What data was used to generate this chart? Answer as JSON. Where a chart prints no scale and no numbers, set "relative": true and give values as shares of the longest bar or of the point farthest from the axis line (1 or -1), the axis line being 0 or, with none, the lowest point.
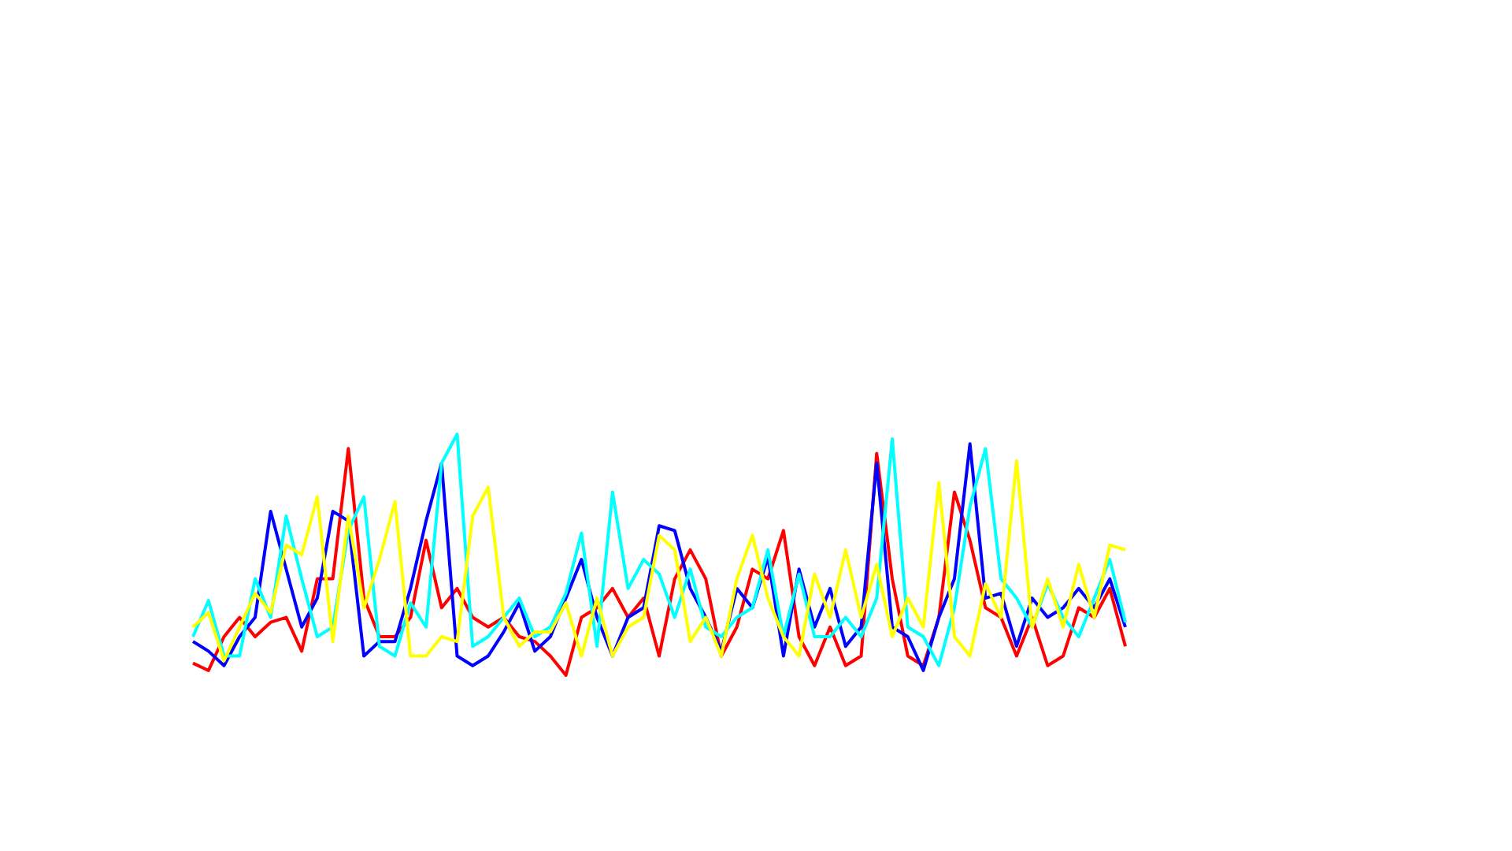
{
  "chart_data": {
    "type": "line",
    "relative": true,
    "categories": [
      null,
      null,
      null,
      null,
      null,
      null,
      null,
      null,
      null,
      null,
      null,
      null,
      null,
      null,
      null,
      null,
      null,
      null,
      null,
      null,
      null,
      null,
      null,
      null,
      null,
      null,
      null,
      null,
      null,
      null,
      null,
      null,
      null,
      null,
      null,
      null,
      null,
      null,
      null,
      null,
      null,
      null,
      null,
      null,
      null,
      null,
      null,
      null,
      null,
      null,
      null,
      null,
      null,
      null,
      null,
      null,
      null,
      null,
      null,
      null,
      null
    ],
    "series": [
      {
        "color": "#ff0000",
        "values": [
          0.05,
          0.02,
          0.16,
          0.24,
          0.16,
          0.22,
          0.24,
          0.1,
          0.4,
          0.4,
          0.94,
          0.32,
          0.16,
          0.16,
          0.24,
          0.56,
          0.28,
          0.36,
          0.24,
          0.2,
          0.24,
          0.16,
          0.14,
          0.08,
          0,
          0.24,
          0.28,
          0.36,
          0.24,
          0.32,
          0.08,
          0.4,
          0.52,
          0.4,
          0.08,
          0.2,
          0.44,
          0.4,
          0.6,
          0.16,
          0.04,
          0.2,
          0.04,
          0.08,
          0.92,
          0.4,
          0.08,
          0.04,
          0.24,
          0.76,
          0.56,
          0.28,
          0.24,
          0.08,
          0.24,
          0.04,
          0.08,
          0.28,
          0.24,
          0.36,
          0.12
        ]
      },
      {
        "color": "#0000ff",
        "values": [
          0.14,
          0.1,
          0.04,
          0.16,
          0.24,
          0.68,
          0.44,
          0.2,
          0.32,
          0.68,
          0.64,
          0.08,
          0.14,
          0.14,
          0.36,
          0.64,
          0.88,
          0.08,
          0.04,
          0.08,
          0.18,
          0.3,
          0.1,
          0.16,
          0.32,
          0.48,
          0.24,
          0.08,
          0.24,
          0.28,
          0.62,
          0.6,
          0.36,
          0.24,
          0.1,
          0.36,
          0.28,
          0.49,
          0.08,
          0.44,
          0.2,
          0.36,
          0.12,
          0.2,
          0.88,
          0.2,
          0.16,
          0.02,
          0.24,
          0.4,
          0.96,
          0.32,
          0.34,
          0.12,
          0.32,
          0.24,
          0.28,
          0.36,
          0.28,
          0.4,
          0.2
        ]
      },
      {
        "color": "#00ffff",
        "values": [
          0.16,
          0.31,
          0.08,
          0.08,
          0.4,
          0.24,
          0.66,
          0.4,
          0.16,
          0.2,
          0.6,
          0.74,
          0.12,
          0.08,
          0.3,
          0.2,
          0.88,
          1,
          0.12,
          0.16,
          0.24,
          0.32,
          0.16,
          0.2,
          0.34,
          0.59,
          0.12,
          0.76,
          0.36,
          0.48,
          0.42,
          0.24,
          0.44,
          0.2,
          0.16,
          0.24,
          0.28,
          0.52,
          0.16,
          0.42,
          0.16,
          0.16,
          0.24,
          0.16,
          0.32,
          0.98,
          0.2,
          0.16,
          0.04,
          0.28,
          0.7,
          0.94,
          0.4,
          0.32,
          0.2,
          0.38,
          0.24,
          0.16,
          0.32,
          0.48,
          0.22
        ]
      },
      {
        "color": "#ffff00",
        "values": [
          0.2,
          0.26,
          0.06,
          0.2,
          0.34,
          0.26,
          0.54,
          0.5,
          0.74,
          0.14,
          0.66,
          0.28,
          0.48,
          0.72,
          0.08,
          0.08,
          0.16,
          0.14,
          0.66,
          0.78,
          0.24,
          0.12,
          0.18,
          0.18,
          0.3,
          0.08,
          0.32,
          0.08,
          0.2,
          0.24,
          0.58,
          0.52,
          0.14,
          0.24,
          0.08,
          0.4,
          0.58,
          0.32,
          0.16,
          0.08,
          0.42,
          0.24,
          0.52,
          0.24,
          0.46,
          0.16,
          0.32,
          0.2,
          0.8,
          0.16,
          0.08,
          0.38,
          0.24,
          0.89,
          0.2,
          0.4,
          0.2,
          0.46,
          0.24,
          0.54,
          0.52
        ]
      }
    ]
  }
}
